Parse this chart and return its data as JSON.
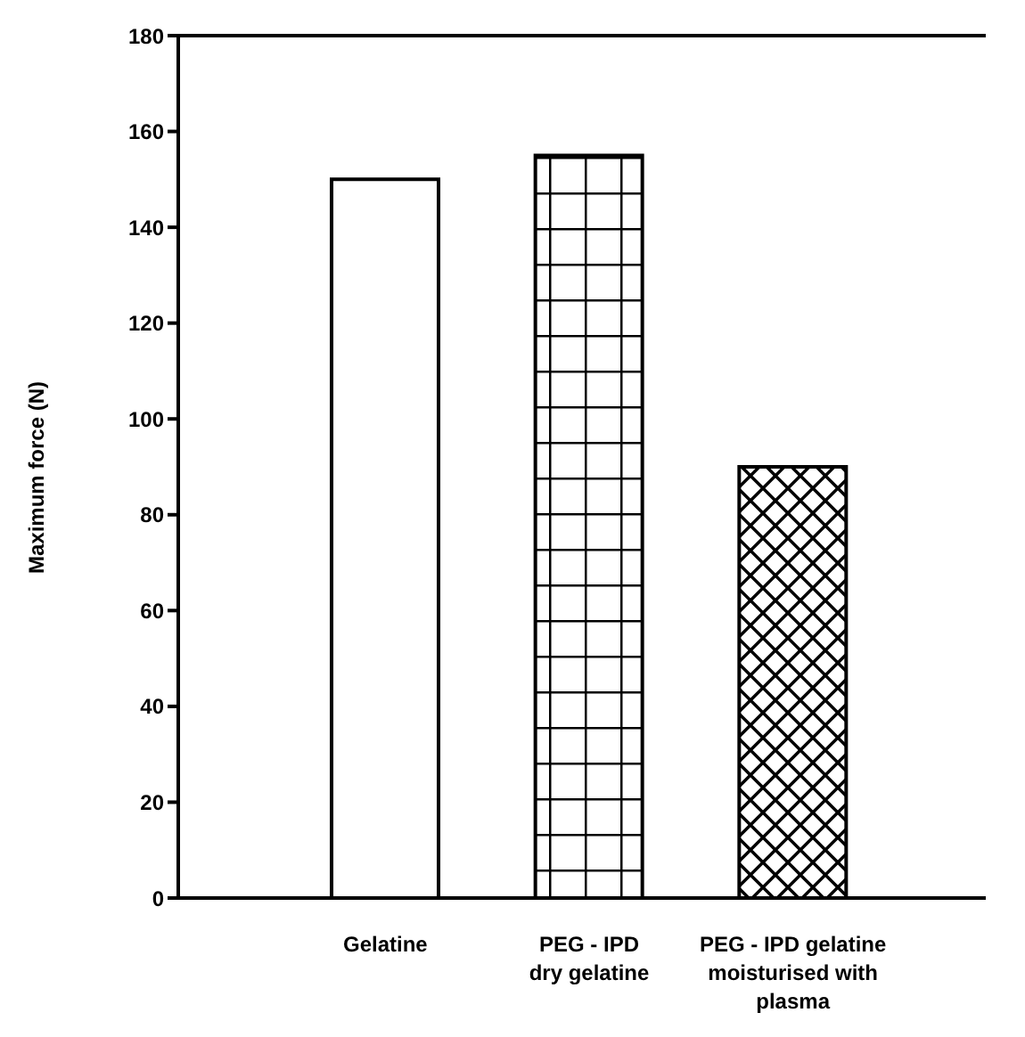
{
  "chart_data": {
    "type": "bar",
    "ylabel": "Maximum force (N)",
    "categories": [
      "Gelatine",
      "PEG - IPD\ndry gelatine",
      "PEG - IPD gelatine\nmoisturised with\nplasma"
    ],
    "values": [
      150,
      155,
      90
    ],
    "colors": [
      "#ffffff",
      "#000000",
      "#000000"
    ],
    "ylim": [
      0,
      180
    ],
    "yticks": [
      0,
      20,
      40,
      60,
      80,
      100,
      120,
      140,
      160,
      180
    ],
    "grid": false,
    "legend": false
  }
}
